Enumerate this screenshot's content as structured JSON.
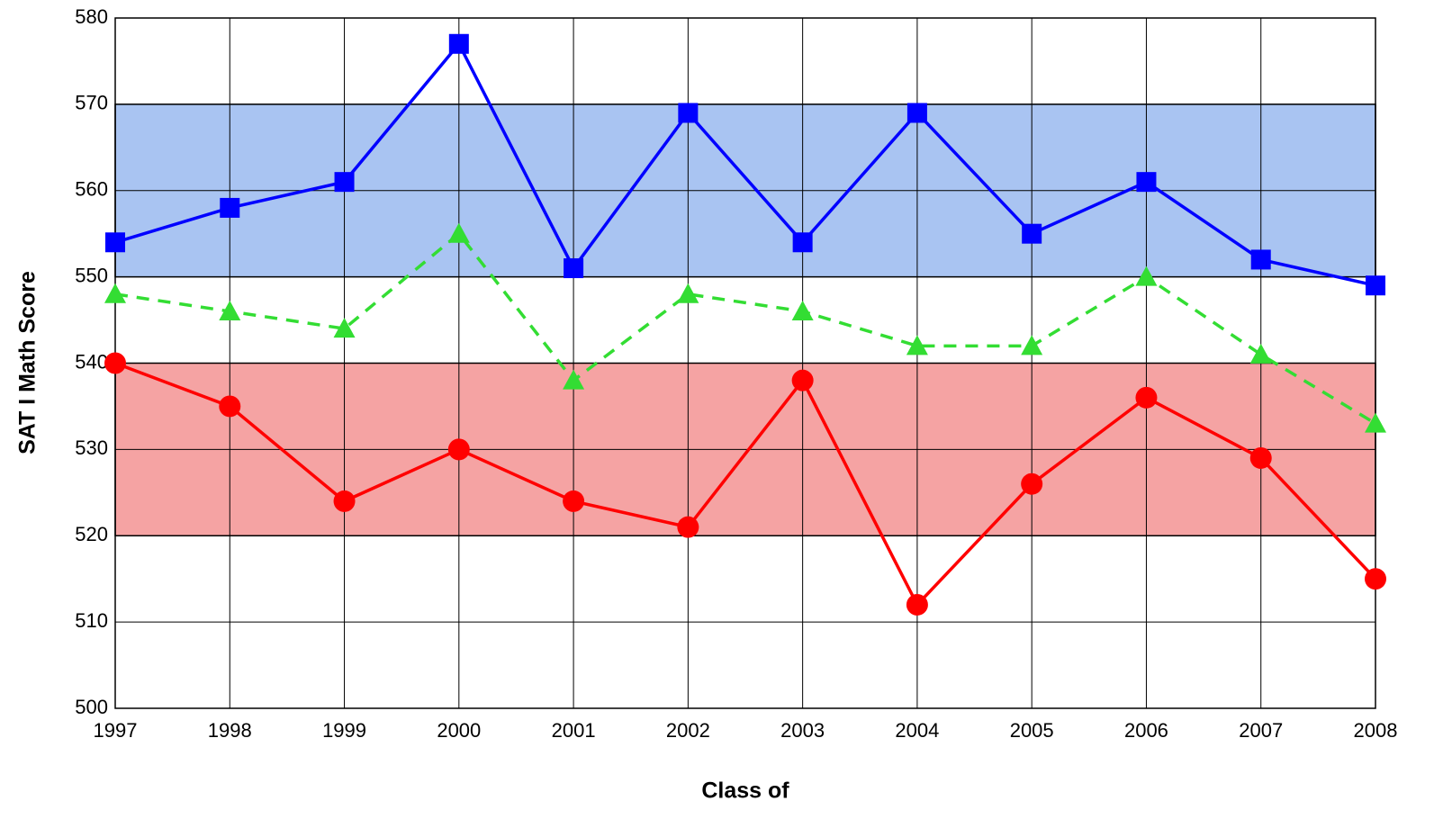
{
  "chart_data": {
    "type": "line",
    "x_label": "Class of",
    "y_label": "SAT I Math Score",
    "categories": [
      "1997",
      "1998",
      "1999",
      "2000",
      "2001",
      "2002",
      "2003",
      "2004",
      "2005",
      "2006",
      "2007",
      "2008"
    ],
    "series": [
      {
        "color": "#0000ff",
        "marker": "square",
        "dash": false,
        "values": [
          554,
          558,
          561,
          577,
          551,
          569,
          554,
          569,
          555,
          561,
          552,
          549
        ]
      },
      {
        "color": "#33dd33",
        "marker": "triangle",
        "dash": true,
        "values": [
          548,
          546,
          544,
          555,
          538,
          548,
          546,
          542,
          542,
          550,
          541,
          533
        ]
      },
      {
        "color": "#ff0000",
        "marker": "circle",
        "dash": false,
        "values": [
          540,
          535,
          524,
          530,
          524,
          521,
          538,
          512,
          526,
          536,
          529,
          515
        ]
      }
    ],
    "bands": [
      {
        "from": 550,
        "to": 570,
        "color": "#a9c4f2"
      },
      {
        "from": 520,
        "to": 540,
        "color": "#f5a3a3"
      }
    ],
    "ylim": [
      500,
      580
    ],
    "yticks": [
      500,
      510,
      520,
      530,
      540,
      550,
      560,
      570,
      580
    ],
    "grid": true
  }
}
